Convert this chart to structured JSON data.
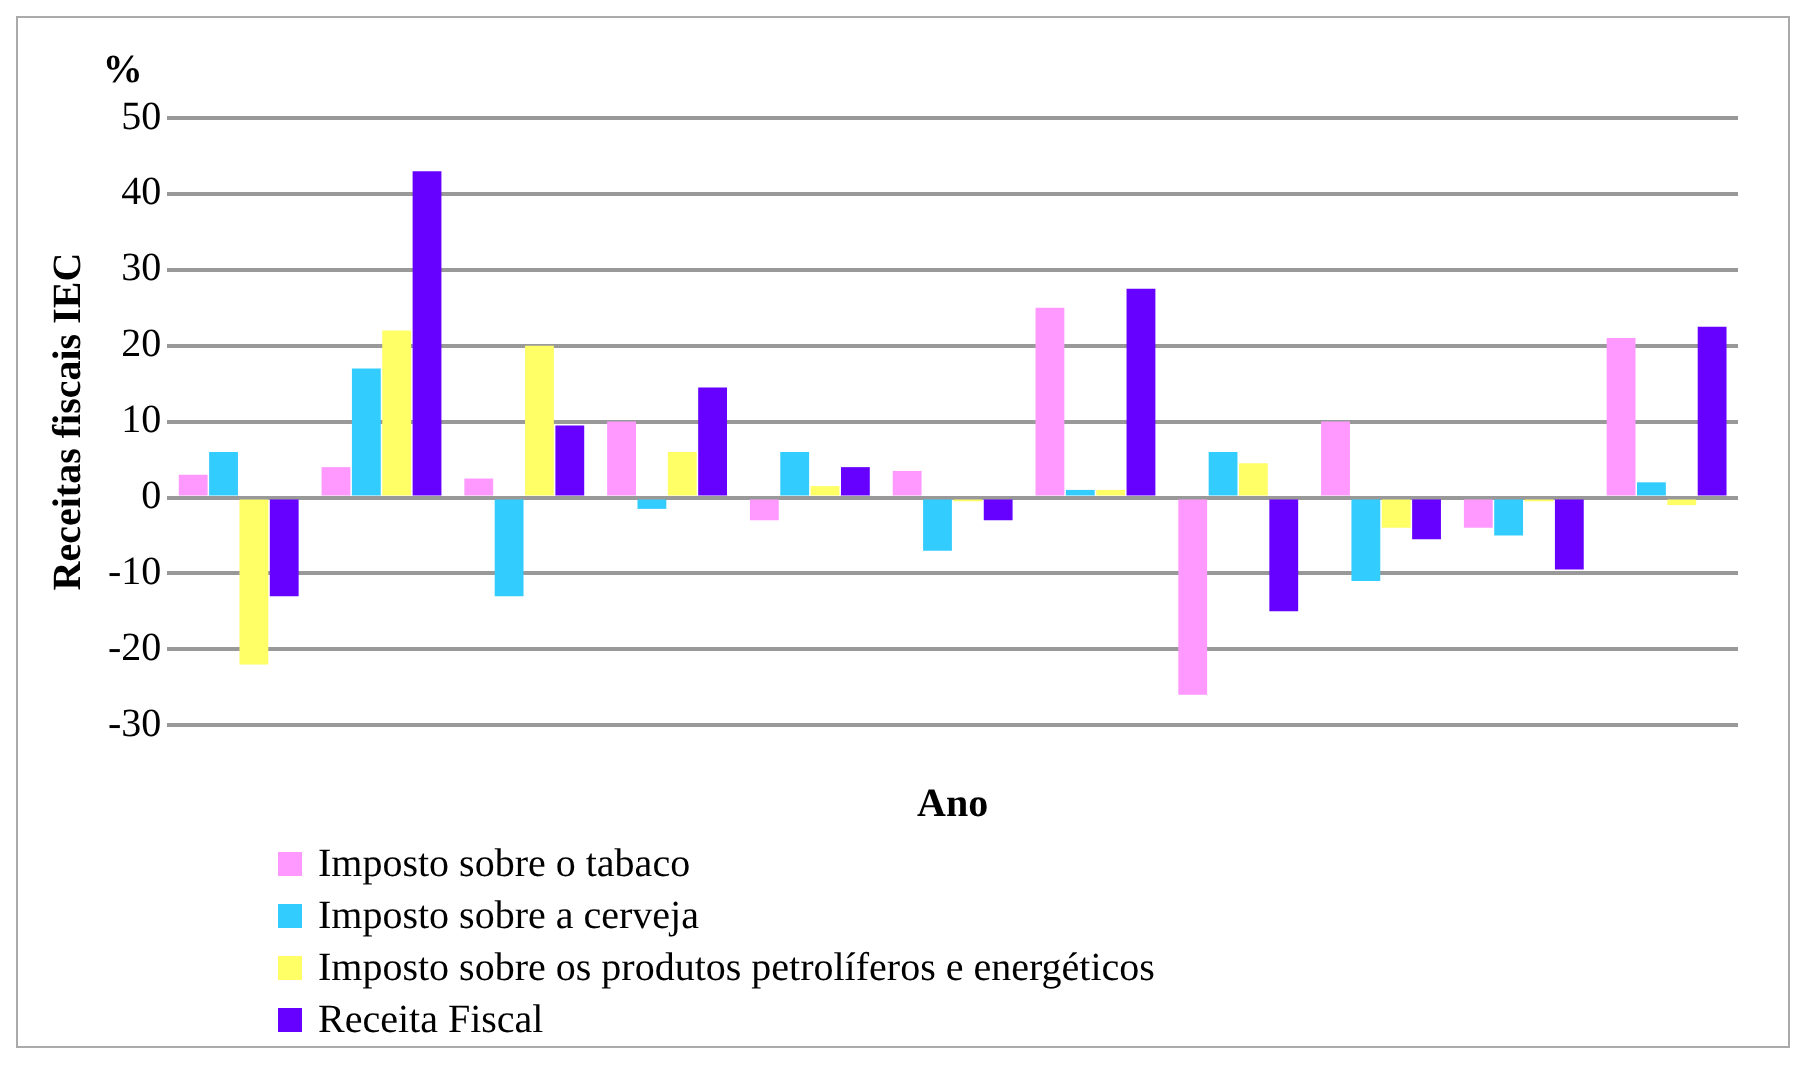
{
  "chart_data": {
    "type": "bar",
    "xlabel": "Ano",
    "ylabel": "Receitas fiscais IEC",
    "annotations": [
      "%"
    ],
    "categories": [
      null,
      null,
      null,
      null,
      null,
      null,
      null,
      null,
      null,
      null,
      null
    ],
    "series": [
      {
        "name": "Imposto sobre o tabaco",
        "color": "#ff99ff",
        "values": [
          3,
          4,
          2.5,
          10,
          -3,
          3.5,
          25,
          -26,
          10,
          -4,
          21
        ]
      },
      {
        "name": "Imposto sobre a cerveja",
        "color": "#33ccff",
        "values": [
          6,
          17,
          -13,
          -1.5,
          6,
          -7,
          1,
          6,
          -11,
          -5,
          2
        ]
      },
      {
        "name": "Imposto sobre os produtos petrolíferos e energéticos",
        "color": "#ffff66",
        "values": [
          -22,
          22,
          20,
          6,
          1.5,
          -0.5,
          1,
          4.5,
          -4,
          -0.5,
          -1
        ]
      },
      {
        "name": "Receita Fiscal",
        "color": "#6600ff",
        "values": [
          -13,
          43,
          9.5,
          14.5,
          4,
          -3,
          27.5,
          -15,
          -5.5,
          -9.5,
          22.5
        ]
      }
    ],
    "ylim": [
      -30,
      50
    ],
    "yticks": [
      -30,
      -20,
      -10,
      0,
      10,
      20,
      30,
      40,
      50
    ],
    "grid": "y",
    "legend": "bottom"
  }
}
